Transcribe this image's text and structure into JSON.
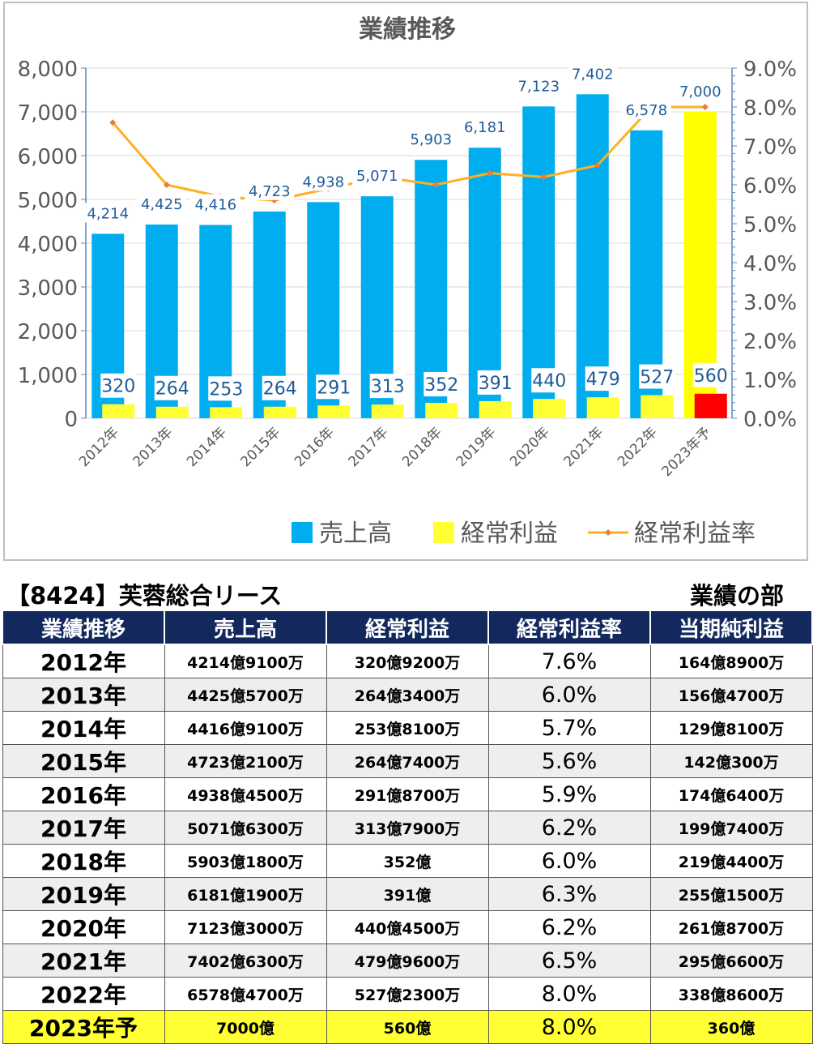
{
  "chart_data": {
    "type": "bar",
    "title": "業績推移",
    "categories": [
      "2012年",
      "2013年",
      "2014年",
      "2015年",
      "2016年",
      "2017年",
      "2018年",
      "2019年",
      "2020年",
      "2021年",
      "2022年",
      "2023年予"
    ],
    "series": [
      {
        "name": "売上高",
        "kind": "bar",
        "axis": "left",
        "color": "#00adee",
        "values": [
          4214,
          4425,
          4416,
          4723,
          4938,
          5071,
          5903,
          6181,
          7123,
          7402,
          6578,
          7000
        ],
        "labels": [
          "4,214",
          "4,425",
          "4,416",
          "4,723",
          "4,938",
          "5,071",
          "5,903",
          "6,181",
          "7,123",
          "7,402",
          "6,578",
          "7,000"
        ],
        "forecast_color": "#ffff00"
      },
      {
        "name": "経常利益",
        "kind": "bar",
        "axis": "left",
        "color": "#ffff33",
        "values": [
          320,
          264,
          253,
          264,
          291,
          313,
          352,
          391,
          440,
          479,
          527,
          560
        ],
        "labels": [
          "320",
          "264",
          "253",
          "264",
          "291",
          "313",
          "352",
          "391",
          "440",
          "479",
          "527",
          "560"
        ],
        "forecast_color": "#ff0000"
      },
      {
        "name": "経常利益率",
        "kind": "line",
        "axis": "right",
        "color": "#ffb020",
        "marker_color": "#ed7d31",
        "values": [
          7.6,
          6.0,
          5.7,
          5.6,
          5.9,
          6.2,
          6.0,
          6.3,
          6.2,
          6.5,
          8.0,
          8.0
        ]
      }
    ],
    "ylim": [
      0,
      8000
    ],
    "yticks": [
      "0",
      "1,000",
      "2,000",
      "3,000",
      "4,000",
      "5,000",
      "6,000",
      "7,000",
      "8,000"
    ],
    "y2lim": [
      0,
      9
    ],
    "y2ticks": [
      "0.0%",
      "1.0%",
      "2.0%",
      "3.0%",
      "4.0%",
      "5.0%",
      "6.0%",
      "7.0%",
      "8.0%",
      "9.0%"
    ],
    "grid": true,
    "legend_position": "bottom",
    "axis_color": "#5a86c5"
  },
  "table": {
    "company": "【8424】芙蓉総合リース",
    "section": "業績の部",
    "headers": [
      "業績推移",
      "売上高",
      "経常利益",
      "経常利益率",
      "当期純利益"
    ],
    "rows": [
      [
        "2012年",
        "4214億9100万",
        "320億9200万",
        "7.6%",
        "164億8900万"
      ],
      [
        "2013年",
        "4425億5700万",
        "264億3400万",
        "6.0%",
        "156億4700万"
      ],
      [
        "2014年",
        "4416億9100万",
        "253億8100万",
        "5.7%",
        "129億8100万"
      ],
      [
        "2015年",
        "4723億2100万",
        "264億7400万",
        "5.6%",
        "142億300万"
      ],
      [
        "2016年",
        "4938億4500万",
        "291億8700万",
        "5.9%",
        "174億6400万"
      ],
      [
        "2017年",
        "5071億6300万",
        "313億7900万",
        "6.2%",
        "199億7400万"
      ],
      [
        "2018年",
        "5903億1800万",
        "352億",
        "6.0%",
        "219億4400万"
      ],
      [
        "2019年",
        "6181億1900万",
        "391億",
        "6.3%",
        "255億1500万"
      ],
      [
        "2020年",
        "7123億3000万",
        "440億4500万",
        "6.2%",
        "261億8700万"
      ],
      [
        "2021年",
        "7402億6300万",
        "479億9600万",
        "6.5%",
        "295億6600万"
      ],
      [
        "2022年",
        "6578億4700万",
        "527億2300万",
        "8.0%",
        "338億8600万"
      ],
      [
        "2023年予",
        "7000億",
        "560億",
        "8.0%",
        "360億"
      ]
    ]
  }
}
